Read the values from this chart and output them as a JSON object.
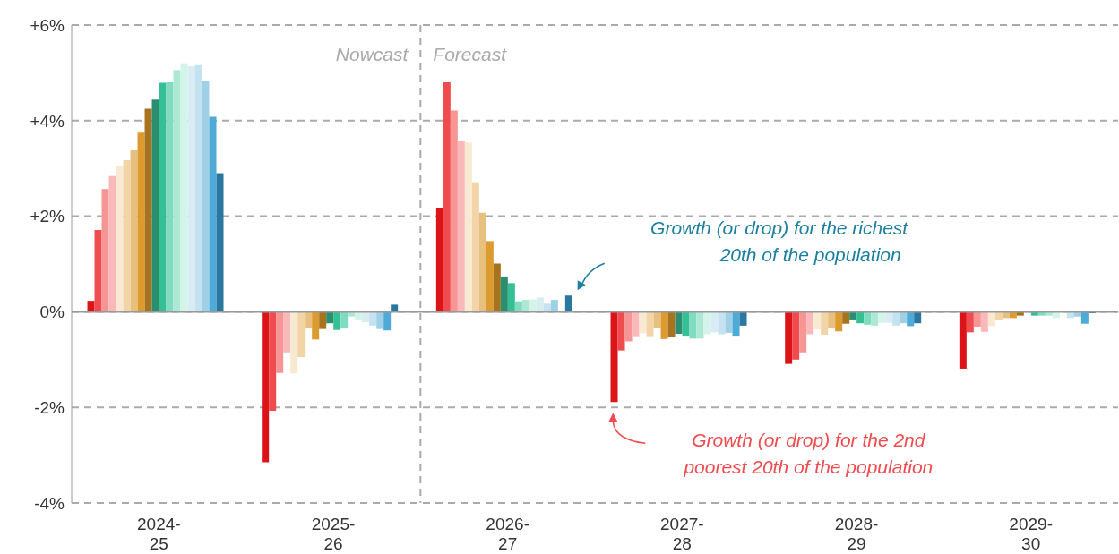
{
  "chart_data": {
    "type": "bar",
    "categories": [
      "2024-25",
      "2025-26",
      "2026-27",
      "2027-28",
      "2028-29",
      "2029-30"
    ],
    "series": [
      {
        "color": "#dc1418",
        "values": [
          0.23,
          -3.15,
          2.18,
          -1.89,
          -1.09,
          -1.19
        ]
      },
      {
        "color": "#f04b4e",
        "values": [
          1.71,
          -2.07,
          4.8,
          -0.81,
          -1.0,
          -0.43
        ]
      },
      {
        "color": "#f79494",
        "values": [
          2.57,
          -1.28,
          4.21,
          -0.62,
          -0.85,
          -0.31
        ]
      },
      {
        "color": "#fbb8b8",
        "values": [
          2.84,
          -0.85,
          3.58,
          -0.51,
          -0.47,
          -0.42
        ]
      },
      {
        "color": "#f8ead2",
        "values": [
          3.04,
          -1.29,
          3.54,
          -0.45,
          -0.37,
          -0.3
        ]
      },
      {
        "color": "#f2d4a6",
        "values": [
          3.17,
          -0.95,
          2.71,
          -0.51,
          -0.48,
          -0.18
        ]
      },
      {
        "color": "#e8c07e",
        "values": [
          3.38,
          -0.35,
          2.07,
          -0.34,
          -0.34,
          -0.13
        ]
      },
      {
        "color": "#dd9a2e",
        "values": [
          3.75,
          -0.58,
          1.48,
          -0.57,
          -0.41,
          -0.13
        ]
      },
      {
        "color": "#a8731f",
        "values": [
          4.25,
          -0.36,
          1.01,
          -0.53,
          -0.25,
          -0.08
        ]
      },
      {
        "color": "#2a8e6f",
        "values": [
          4.44,
          -0.24,
          0.74,
          -0.46,
          -0.16,
          0
        ]
      },
      {
        "color": "#34c094",
        "values": [
          4.79,
          -0.38,
          0.6,
          -0.5,
          -0.24,
          -0.08
        ]
      },
      {
        "color": "#80dcc0",
        "values": [
          4.8,
          -0.35,
          0.22,
          -0.56,
          -0.27,
          -0.08
        ]
      },
      {
        "color": "#ace8d4",
        "values": [
          5.06,
          -0.1,
          0.25,
          -0.56,
          -0.29,
          -0.08
        ]
      },
      {
        "color": "#d4f4ea",
        "values": [
          5.2,
          -0.16,
          0.26,
          -0.47,
          -0.23,
          -0.13
        ]
      },
      {
        "color": "#d8ecf4",
        "values": [
          5.14,
          -0.22,
          0.3,
          -0.43,
          -0.23,
          0
        ]
      },
      {
        "color": "#c4e2f0",
        "values": [
          5.16,
          -0.29,
          0.17,
          -0.47,
          -0.29,
          -0.13
        ]
      },
      {
        "color": "#a0d0e6",
        "values": [
          4.82,
          -0.36,
          0.25,
          -0.44,
          -0.24,
          -0.1
        ]
      },
      {
        "color": "#4eaad6",
        "values": [
          4.08,
          -0.39,
          null,
          -0.5,
          -0.3,
          -0.25
        ]
      },
      {
        "color": "#2a789e",
        "values": [
          2.9,
          0.15,
          0.34,
          -0.29,
          -0.24,
          -0.03
        ]
      }
    ],
    "ylim": [
      -4,
      6
    ],
    "yticks": [
      {
        "value": -4,
        "label": "-4%"
      },
      {
        "value": -2,
        "label": "-2%"
      },
      {
        "value": 0,
        "label": "0%"
      },
      {
        "value": 2,
        "label": "+2%"
      },
      {
        "value": 4,
        "label": "+4%"
      },
      {
        "value": 6,
        "label": "+6%"
      }
    ],
    "grid": "y",
    "annotations": [
      "Nowcast",
      "Forecast",
      "Growth (or drop) for the richest 20th of the population",
      "Growth (or drop) for the 2nd poorest 20th of the population"
    ]
  }
}
